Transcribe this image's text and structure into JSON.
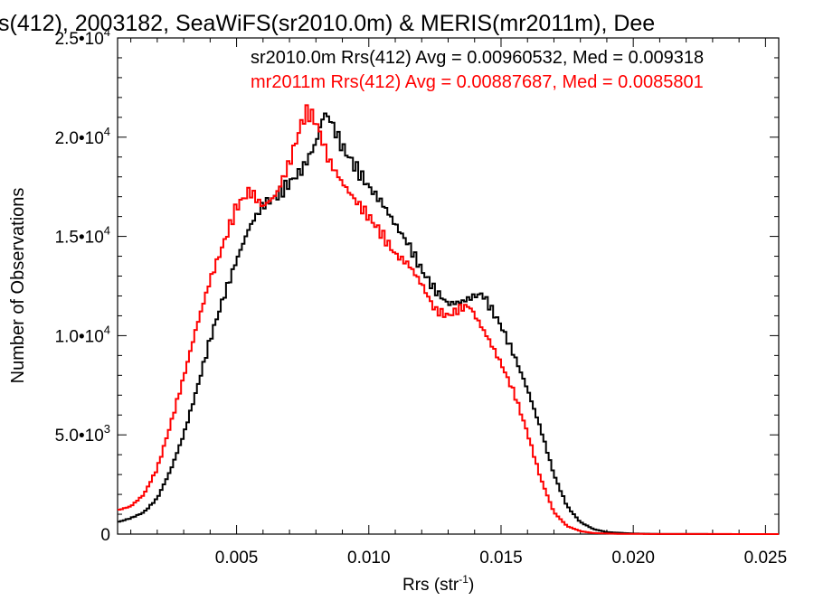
{
  "chart_data": {
    "type": "line",
    "title": "s(412), 2003182, SeaWiFS(sr2010.0m) & MERIS(mr2011m), Dee",
    "xlabel": "Rrs (str",
    "xlabel_sup": "-1",
    "xlabel_suffix": ")",
    "ylabel": "Number of Observations",
    "xlim": [
      0.0005,
      0.0255
    ],
    "ylim": [
      0,
      25000
    ],
    "grid": false,
    "legend_position": "top-right",
    "x_ticks": [
      {
        "value": 0.005,
        "label": "0.005"
      },
      {
        "value": 0.01,
        "label": "0.010"
      },
      {
        "value": 0.015,
        "label": "0.015"
      },
      {
        "value": 0.02,
        "label": "0.020"
      },
      {
        "value": 0.025,
        "label": "0.025"
      }
    ],
    "y_ticks": [
      {
        "value": 0,
        "mant": "0",
        "exp": ""
      },
      {
        "value": 5000,
        "mant": "5.0•10",
        "exp": "3"
      },
      {
        "value": 10000,
        "mant": "1.0•10",
        "exp": "4"
      },
      {
        "value": 15000,
        "mant": "1.5•10",
        "exp": "4"
      },
      {
        "value": 20000,
        "mant": "2.0•10",
        "exp": "4"
      },
      {
        "value": 25000,
        "mant": "2.5•10",
        "exp": "4"
      }
    ],
    "series": [
      {
        "name": "sr2010.0m Rrs(412) Avg = 0.00960532, Med = 0.009318",
        "color": "#000000",
        "points": [
          [
            0.0005,
            600
          ],
          [
            0.001,
            800
          ],
          [
            0.0015,
            1100
          ],
          [
            0.002,
            1800
          ],
          [
            0.0025,
            3200
          ],
          [
            0.003,
            5000
          ],
          [
            0.0035,
            7300
          ],
          [
            0.004,
            9800
          ],
          [
            0.0045,
            11900
          ],
          [
            0.005,
            13800
          ],
          [
            0.0055,
            15500
          ],
          [
            0.006,
            16600
          ],
          [
            0.0065,
            17000
          ],
          [
            0.007,
            17700
          ],
          [
            0.0075,
            18400
          ],
          [
            0.008,
            19700
          ],
          [
            0.0083,
            21200
          ],
          [
            0.0085,
            21000
          ],
          [
            0.009,
            19500
          ],
          [
            0.0095,
            18500
          ],
          [
            0.01,
            17500
          ],
          [
            0.0105,
            16700
          ],
          [
            0.011,
            15600
          ],
          [
            0.0115,
            14600
          ],
          [
            0.012,
            13300
          ],
          [
            0.0125,
            12300
          ],
          [
            0.013,
            11600
          ],
          [
            0.0135,
            11700
          ],
          [
            0.014,
            12000
          ],
          [
            0.0143,
            12100
          ],
          [
            0.015,
            10500
          ],
          [
            0.0155,
            9000
          ],
          [
            0.016,
            7300
          ],
          [
            0.0165,
            5300
          ],
          [
            0.017,
            3000
          ],
          [
            0.0175,
            1400
          ],
          [
            0.018,
            600
          ],
          [
            0.0185,
            250
          ],
          [
            0.019,
            100
          ],
          [
            0.02,
            30
          ],
          [
            0.021,
            5
          ],
          [
            0.0255,
            0
          ]
        ]
      },
      {
        "name": "mr2011m Rrs(412) Avg = 0.00887687, Med = 0.0085801",
        "color": "#ff0000",
        "points": [
          [
            0.0005,
            1200
          ],
          [
            0.001,
            1400
          ],
          [
            0.0015,
            2000
          ],
          [
            0.002,
            3300
          ],
          [
            0.0025,
            5500
          ],
          [
            0.003,
            7900
          ],
          [
            0.0035,
            10500
          ],
          [
            0.004,
            12800
          ],
          [
            0.0045,
            14600
          ],
          [
            0.005,
            16500
          ],
          [
            0.0055,
            17300
          ],
          [
            0.006,
            16500
          ],
          [
            0.0065,
            17100
          ],
          [
            0.007,
            18700
          ],
          [
            0.0075,
            20900
          ],
          [
            0.0077,
            21300
          ],
          [
            0.008,
            20800
          ],
          [
            0.0085,
            18800
          ],
          [
            0.009,
            17700
          ],
          [
            0.0095,
            16800
          ],
          [
            0.01,
            16000
          ],
          [
            0.0105,
            15100
          ],
          [
            0.011,
            14100
          ],
          [
            0.0115,
            13600
          ],
          [
            0.012,
            12600
          ],
          [
            0.0125,
            11300
          ],
          [
            0.013,
            11000
          ],
          [
            0.0135,
            11400
          ],
          [
            0.0138,
            11500
          ],
          [
            0.0145,
            9900
          ],
          [
            0.015,
            8600
          ],
          [
            0.0155,
            7100
          ],
          [
            0.016,
            5100
          ],
          [
            0.0165,
            2800
          ],
          [
            0.017,
            1100
          ],
          [
            0.0175,
            400
          ],
          [
            0.018,
            150
          ],
          [
            0.0185,
            50
          ],
          [
            0.0195,
            10
          ],
          [
            0.0255,
            0
          ]
        ]
      }
    ]
  }
}
